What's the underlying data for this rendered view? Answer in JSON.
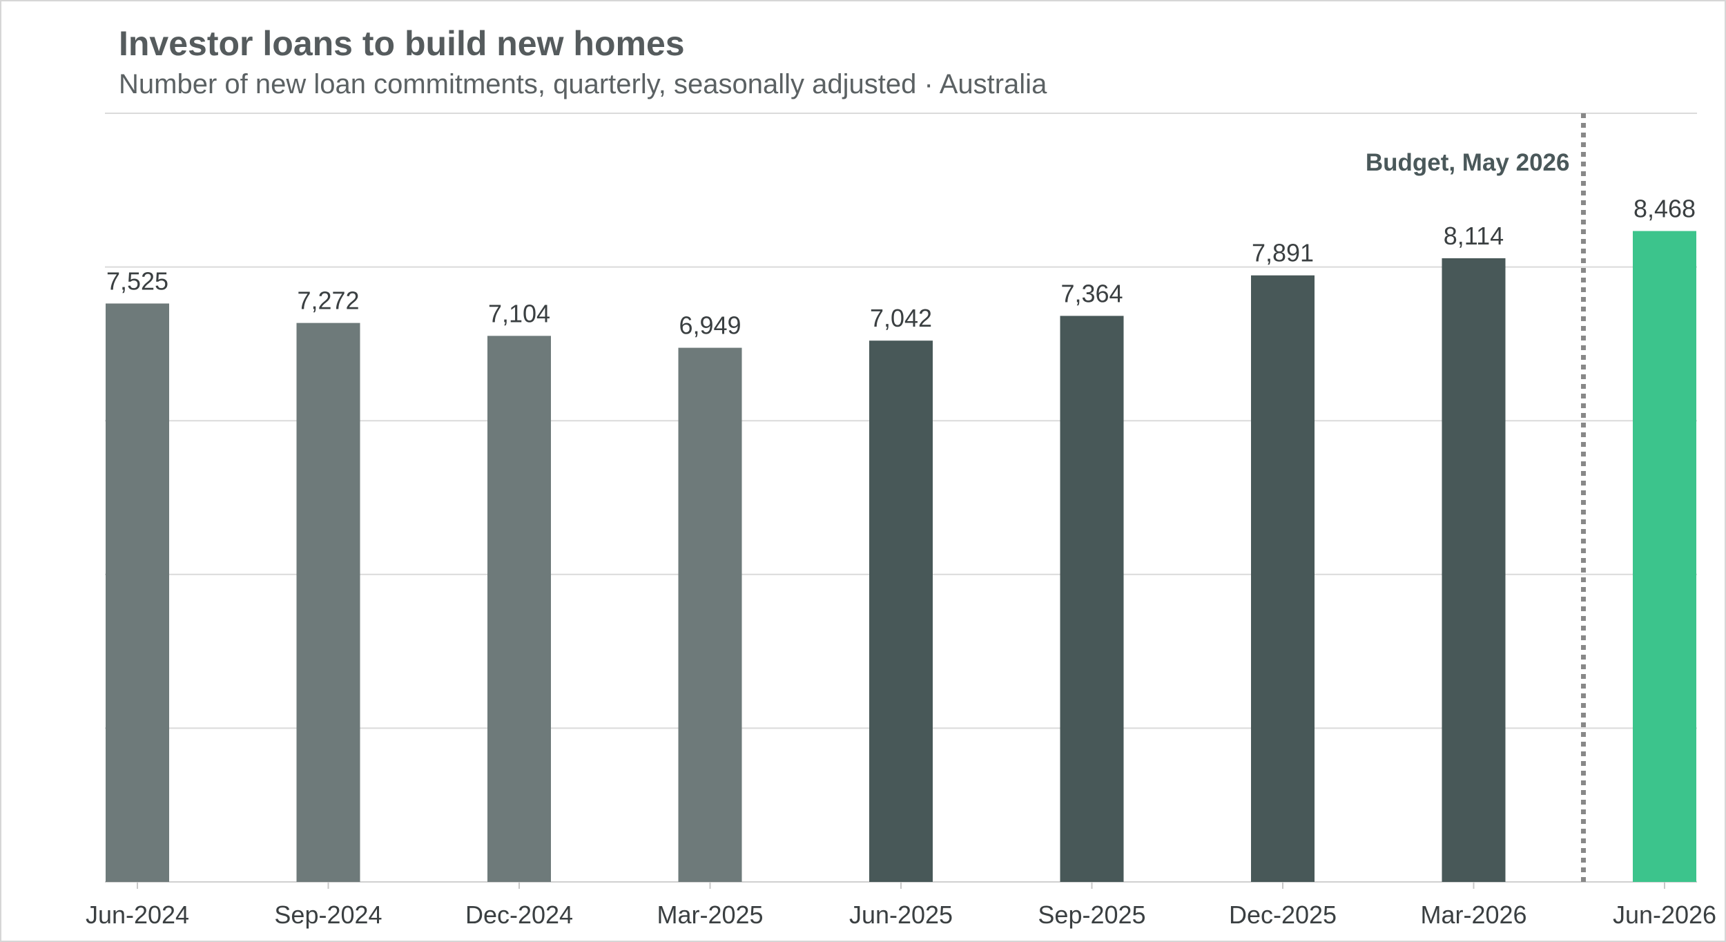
{
  "chart_data": {
    "type": "bar",
    "title": "Investor loans to build new homes",
    "subtitle": "Number of new loan commitments, quarterly, seasonally adjusted · Australia",
    "categories": [
      "Jun-2024",
      "Sep-2024",
      "Dec-2024",
      "Mar-2025",
      "Jun-2025",
      "Sep-2025",
      "Dec-2025",
      "Mar-2026",
      "Jun-2026"
    ],
    "values": [
      7525,
      7272,
      7104,
      6949,
      7042,
      7364,
      7891,
      8114,
      8468
    ],
    "data_labels": [
      "7,525",
      "7,272",
      "7,104",
      "6,949",
      "7,042",
      "7,364",
      "7,891",
      "8,114",
      "8,468"
    ],
    "bar_colors": [
      "#6e7a7a",
      "#6e7a7a",
      "#6e7a7a",
      "#6e7a7a",
      "#485858",
      "#485858",
      "#485858",
      "#485858",
      "#3cc48c"
    ],
    "ylim": [
      0,
      10000
    ],
    "gridlines": [
      2000,
      4000,
      6000,
      8000,
      10000
    ],
    "grid": true,
    "xlabel": "",
    "ylabel": "",
    "annotation": {
      "label": "Budget, May 2026",
      "between": [
        "Mar-2026",
        "Jun-2026"
      ],
      "line_color": "#888888"
    }
  }
}
